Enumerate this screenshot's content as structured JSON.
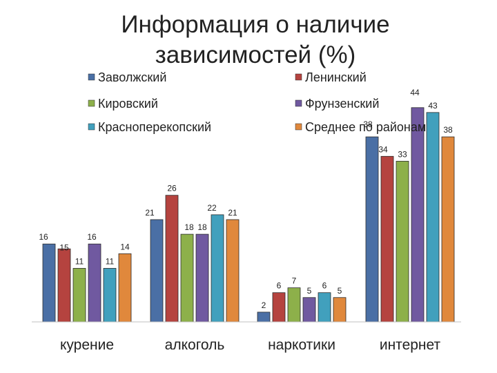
{
  "title": "Информация о наличие зависимостей (%)",
  "chart_data": {
    "type": "bar",
    "title": "Информация о наличие зависимостей (%)",
    "xlabel": "",
    "ylabel": "",
    "ylim": [
      0,
      45
    ],
    "grid": false,
    "legend_position": "top",
    "categories": [
      "курение",
      "алкоголь",
      "наркотики",
      "интернет"
    ],
    "series": [
      {
        "name": "Заволжский",
        "color": "#4a6fa5",
        "values": [
          16,
          21,
          2,
          38
        ]
      },
      {
        "name": "Ленинский",
        "color": "#b5433f",
        "values": [
          15,
          26,
          6,
          34
        ]
      },
      {
        "name": "Кировский",
        "color": "#8db04a",
        "values": [
          11,
          18,
          7,
          33
        ]
      },
      {
        "name": "Фрунзенский",
        "color": "#7059a0",
        "values": [
          16,
          18,
          5,
          44
        ]
      },
      {
        "name": "Красноперекопский",
        "color": "#41a0bd",
        "values": [
          11,
          22,
          6,
          43
        ]
      },
      {
        "name": "Среднее по районам",
        "color": "#e0883c",
        "values": [
          14,
          21,
          5,
          38
        ]
      }
    ]
  }
}
